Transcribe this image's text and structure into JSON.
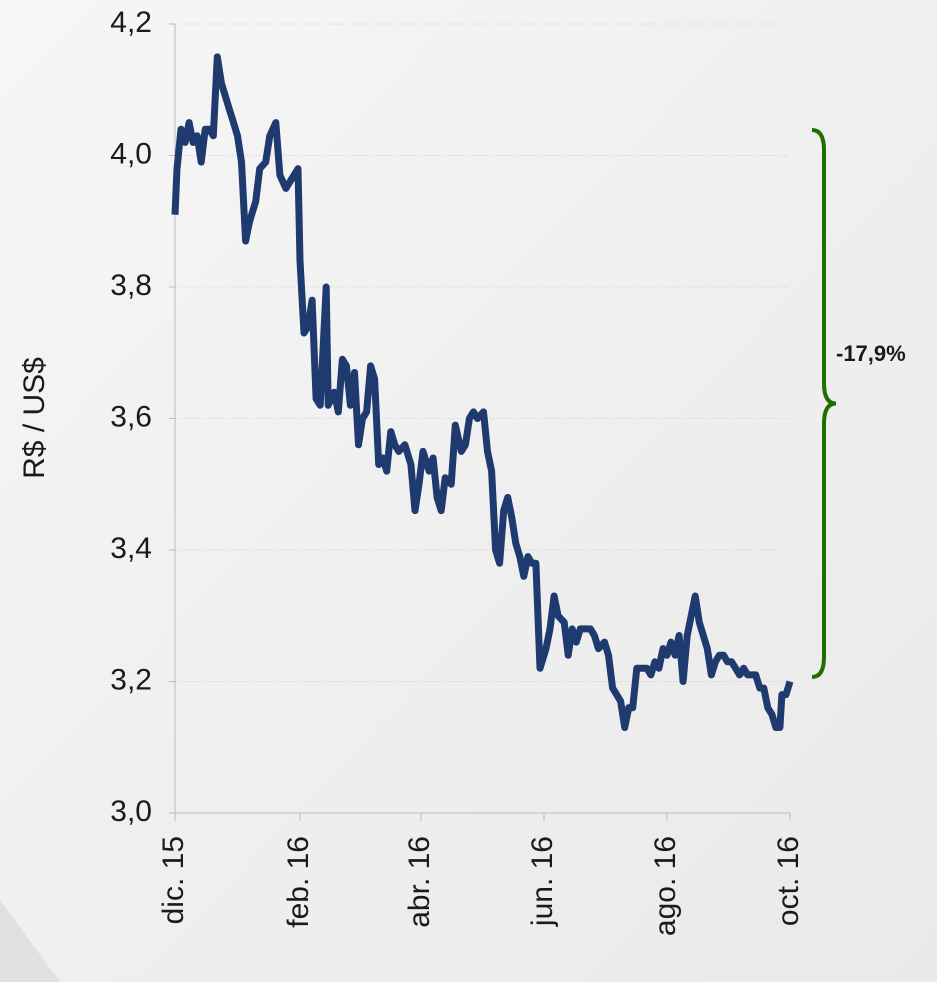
{
  "chart_data": {
    "type": "line",
    "y_label": "R$ / US$",
    "annotation": "-17,9%",
    "xlim": [
      0,
      305
    ],
    "xticks": [
      {
        "value": 0,
        "label": "dic. 15"
      },
      {
        "value": 62,
        "label": "feb. 16"
      },
      {
        "value": 122,
        "label": "abr. 16"
      },
      {
        "value": 183,
        "label": "jun. 16"
      },
      {
        "value": 244,
        "label": "ago. 16"
      },
      {
        "value": 305,
        "label": "oct. 16"
      }
    ],
    "ylim": [
      3.0,
      4.2
    ],
    "yticks": [
      {
        "value": 3.0,
        "label": "3,0"
      },
      {
        "value": 3.2,
        "label": "3,2"
      },
      {
        "value": 3.4,
        "label": "3,4"
      },
      {
        "value": 3.6,
        "label": "3,6"
      },
      {
        "value": 3.8,
        "label": "3,8"
      },
      {
        "value": 4.0,
        "label": "4,0"
      },
      {
        "value": 4.2,
        "label": "4,2"
      }
    ],
    "grid": true,
    "annotation_color": "#1e6e00",
    "x": [
      0,
      1,
      3,
      5,
      7,
      9,
      11,
      13,
      15,
      17,
      19,
      21,
      23,
      25,
      27,
      29,
      31,
      33,
      35,
      37,
      40,
      42,
      45,
      47,
      50,
      52,
      55,
      57,
      61,
      62,
      64,
      66,
      68,
      70,
      72,
      75,
      76,
      79,
      81,
      83,
      85,
      87,
      89,
      91,
      93,
      95,
      97,
      99,
      101,
      103,
      105,
      107,
      109,
      111,
      114,
      117,
      119,
      121,
      123,
      126,
      128,
      130,
      132,
      134,
      137,
      139,
      142,
      144,
      146,
      148,
      150,
      153,
      155,
      157,
      159,
      161,
      163,
      165,
      167,
      169,
      171,
      173,
      175,
      177,
      179,
      181,
      184,
      186,
      188,
      190,
      193,
      195,
      197,
      199,
      201,
      204,
      206,
      208,
      210,
      213,
      215,
      217,
      219,
      221,
      223,
      225,
      227,
      229,
      231,
      234,
      236,
      238,
      240,
      242,
      244,
      246,
      248,
      250,
      252,
      254,
      256,
      258,
      260,
      262,
      264,
      266,
      268,
      270,
      272,
      274,
      276,
      278,
      280,
      282,
      284,
      286,
      288,
      290,
      292,
      294,
      296,
      298,
      300,
      301,
      303,
      305
    ],
    "series": [
      {
        "color": "#1f3a6e",
        "values": [
          3.91,
          3.98,
          4.04,
          4.02,
          4.05,
          4.02,
          4.03,
          3.99,
          4.04,
          4.04,
          4.03,
          4.15,
          4.11,
          4.09,
          4.07,
          4.05,
          4.03,
          3.99,
          3.87,
          3.9,
          3.93,
          3.98,
          3.99,
          4.03,
          4.05,
          3.97,
          3.95,
          3.96,
          3.98,
          3.84,
          3.73,
          3.74,
          3.78,
          3.63,
          3.62,
          3.8,
          3.62,
          3.64,
          3.61,
          3.69,
          3.68,
          3.62,
          3.67,
          3.56,
          3.6,
          3.61,
          3.68,
          3.66,
          3.53,
          3.54,
          3.52,
          3.58,
          3.56,
          3.55,
          3.56,
          3.53,
          3.46,
          3.5,
          3.55,
          3.52,
          3.54,
          3.48,
          3.46,
          3.51,
          3.5,
          3.59,
          3.55,
          3.56,
          3.6,
          3.61,
          3.6,
          3.61,
          3.55,
          3.52,
          3.4,
          3.38,
          3.46,
          3.48,
          3.45,
          3.41,
          3.39,
          3.36,
          3.39,
          3.38,
          3.38,
          3.22,
          3.25,
          3.28,
          3.33,
          3.3,
          3.29,
          3.24,
          3.28,
          3.26,
          3.28,
          3.28,
          3.28,
          3.27,
          3.25,
          3.26,
          3.24,
          3.19,
          3.18,
          3.17,
          3.13,
          3.16,
          3.16,
          3.22,
          3.22,
          3.22,
          3.21,
          3.23,
          3.22,
          3.25,
          3.24,
          3.26,
          3.24,
          3.27,
          3.2,
          3.27,
          3.3,
          3.33,
          3.29,
          3.27,
          3.25,
          3.21,
          3.23,
          3.24,
          3.24,
          3.23,
          3.23,
          3.22,
          3.21,
          3.22,
          3.21,
          3.21,
          3.21,
          3.19,
          3.19,
          3.16,
          3.15,
          3.13,
          3.13,
          3.18,
          3.18,
          3.2
        ]
      }
    ]
  }
}
